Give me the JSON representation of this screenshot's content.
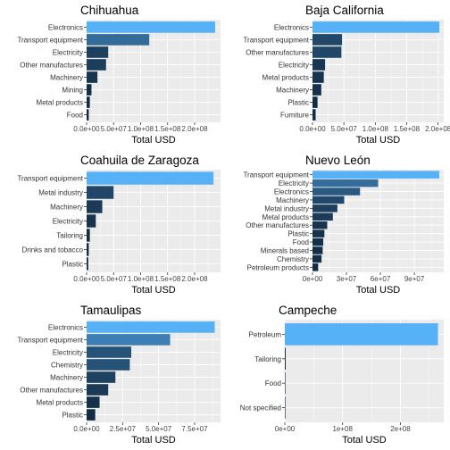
{
  "chart_data": [
    {
      "type": "bar",
      "orientation": "horizontal",
      "title": "Chihuahua",
      "xlabel": "Total USD",
      "categories": [
        "Electronics",
        "Transport equipment",
        "Electricity",
        "Other manufactures",
        "Machinery",
        "Mining",
        "Metal products",
        "Food"
      ],
      "values": [
        238000000,
        116000000,
        40000000,
        36000000,
        20000000,
        9000000,
        6000000,
        4000000
      ],
      "xlim": [
        0,
        248000000
      ],
      "xticks": [
        0,
        50000000,
        100000000,
        150000000,
        200000000
      ],
      "xtick_labels": [
        "0.0e+00",
        "5.0e+07",
        "1.0e+08",
        "1.5e+08",
        "2.0e+08"
      ],
      "highlight_colors": [
        "#56b1f7",
        "#336a98",
        "#132b43"
      ]
    },
    {
      "type": "bar",
      "orientation": "horizontal",
      "title": "Baja California",
      "xlabel": "Total USD",
      "categories": [
        "Electronics",
        "Transport equipment",
        "Other manufactures",
        "Electricity",
        "Metal products",
        "Machinery",
        "Plastic",
        "Furniture"
      ],
      "values": [
        202000000,
        47000000,
        46000000,
        20000000,
        18000000,
        14000000,
        8000000,
        5000000
      ],
      "xlim": [
        0,
        209000000
      ],
      "xticks": [
        0,
        50000000,
        100000000,
        150000000,
        200000000
      ],
      "xtick_labels": [
        "0.0e+00",
        "5.0e+07",
        "1.0e+08",
        "1.5e+08",
        "2.0e+08"
      ]
    },
    {
      "type": "bar",
      "orientation": "horizontal",
      "title": "Coahuila de Zaragoza",
      "xlabel": "Total USD",
      "categories": [
        "Transport equipment",
        "Metal industry",
        "Machinery",
        "Electricity",
        "Tailoring",
        "Drinks and tobacco",
        "Plastic"
      ],
      "values": [
        235000000,
        50000000,
        29000000,
        17000000,
        6000000,
        4000000,
        3000000
      ],
      "xlim": [
        0,
        248000000
      ],
      "xticks": [
        0,
        50000000,
        100000000,
        150000000,
        200000000
      ],
      "xtick_labels": [
        "0.0e+00",
        "5.0e+07",
        "1.0e+08",
        "1.5e+08",
        "2.0e+08"
      ]
    },
    {
      "type": "bar",
      "orientation": "horizontal",
      "title": "Nuevo León",
      "xlabel": "Total USD",
      "categories": [
        "Transport equipment",
        "Electricity",
        "Electronics",
        "Machinery",
        "Metal industry",
        "Metal products",
        "Other manufactures",
        "Plastic",
        "Food",
        "Minerals based",
        "Chemistry",
        "Petroleum products"
      ],
      "values": [
        112000000,
        58000000,
        42000000,
        28000000,
        22000000,
        18000000,
        13000000,
        10500000,
        9500000,
        9000000,
        8000000,
        5000000
      ],
      "xlim": [
        0,
        116000000
      ],
      "xticks": [
        0,
        30000000,
        60000000,
        90000000
      ],
      "xtick_labels": [
        "0e+00",
        "3e+07",
        "6e+07",
        "9e+07"
      ]
    },
    {
      "type": "bar",
      "orientation": "horizontal",
      "title": "Tamaulipas",
      "xlabel": "Total USD",
      "categories": [
        "Electronics",
        "Transport equipment",
        "Electricity",
        "Chemistry",
        "Machinery",
        "Other manufactures",
        "Metal products",
        "Plastic"
      ],
      "values": [
        89000000,
        58000000,
        31000000,
        30000000,
        20000000,
        15000000,
        9000000,
        6000000
      ],
      "xlim": [
        0,
        93000000
      ],
      "xticks": [
        0,
        25000000,
        50000000,
        75000000
      ],
      "xtick_labels": [
        "0.0e+00",
        "2.5e+07",
        "5.0e+07",
        "7.5e+07"
      ]
    },
    {
      "type": "bar",
      "orientation": "horizontal",
      "title": "Campeche",
      "xlabel": "Total USD",
      "categories": [
        "Petroleum",
        "Tailoring",
        "Food",
        "Not specified"
      ],
      "values": [
        265000000,
        1500000,
        200000,
        100000
      ],
      "xlim": [
        0,
        275000000
      ],
      "xticks": [
        0,
        100000000,
        200000000
      ],
      "xtick_labels": [
        "0e+00",
        "1e+08",
        "2e+08"
      ]
    }
  ]
}
